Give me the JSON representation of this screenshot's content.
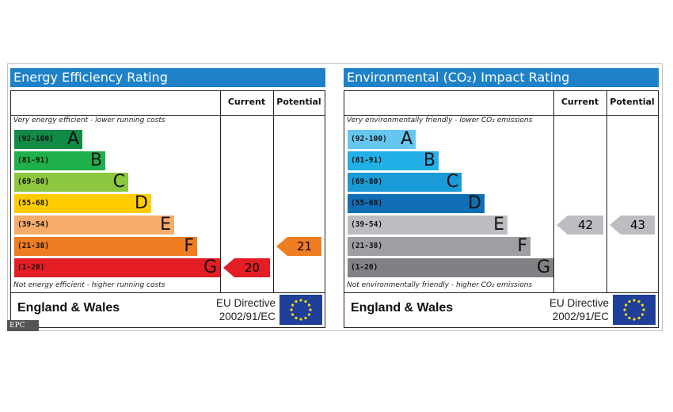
{
  "chart_data": [
    {
      "type": "bar",
      "title": "Energy Efficiency Rating",
      "columns": [
        "Current",
        "Potential"
      ],
      "top_note": "Very energy efficient - lower running costs",
      "bottom_note": "Not energy efficient - higher running costs",
      "bands": [
        {
          "letter": "A",
          "range": "(92-100)",
          "color": "#118a45",
          "text_color": "#111111"
        },
        {
          "letter": "B",
          "range": "(81-91)",
          "color": "#1eb04b",
          "text_color": "#111111"
        },
        {
          "letter": "C",
          "range": "(69-80)",
          "color": "#8dc63f",
          "text_color": "#111111"
        },
        {
          "letter": "D",
          "range": "(55-68)",
          "color": "#ffcc00",
          "text_color": "#111111"
        },
        {
          "letter": "E",
          "range": "(39-54)",
          "color": "#f7ac6b",
          "text_color": "#111111"
        },
        {
          "letter": "F",
          "range": "(21-38)",
          "color": "#ef7d22",
          "text_color": "#111111"
        },
        {
          "letter": "G",
          "range": "(1-20)",
          "color": "#e31d23",
          "text_color": "#111111"
        }
      ],
      "current": {
        "value": 20,
        "band": "G",
        "color": "#e31d23"
      },
      "potential": {
        "value": 21,
        "band": "F",
        "color": "#ef7d22"
      },
      "region": "England & Wales",
      "directive_line1": "EU Directive",
      "directive_line2": "2002/91/EC"
    },
    {
      "type": "bar",
      "title": "Environmental (CO₂) Impact Rating",
      "columns": [
        "Current",
        "Potential"
      ],
      "top_note": "Very environmentally friendly - lower CO₂ emissions",
      "bottom_note": "Not environmentally friendly - higher CO₂ emissions",
      "bands": [
        {
          "letter": "A",
          "range": "(92-100)",
          "color": "#67c6ef",
          "text_color": "#111111"
        },
        {
          "letter": "B",
          "range": "(81-91)",
          "color": "#22b0e6",
          "text_color": "#111111"
        },
        {
          "letter": "C",
          "range": "(69-80)",
          "color": "#1a9ad6",
          "text_color": "#111111"
        },
        {
          "letter": "D",
          "range": "(55-68)",
          "color": "#0f6eb4",
          "text_color": "#111111"
        },
        {
          "letter": "E",
          "range": "(39-54)",
          "color": "#bbbdc0",
          "text_color": "#111111"
        },
        {
          "letter": "F",
          "range": "(21-38)",
          "color": "#9d9fa2",
          "text_color": "#111111"
        },
        {
          "letter": "G",
          "range": "(1-20)",
          "color": "#808184",
          "text_color": "#111111"
        }
      ],
      "current": {
        "value": 42,
        "band": "E",
        "color": "#bbbdc0"
      },
      "potential": {
        "value": 43,
        "band": "E",
        "color": "#bbbdc0"
      },
      "region": "England & Wales",
      "directive_line1": "EU Directive",
      "directive_line2": "2002/91/EC"
    }
  ],
  "caption": "EPC"
}
